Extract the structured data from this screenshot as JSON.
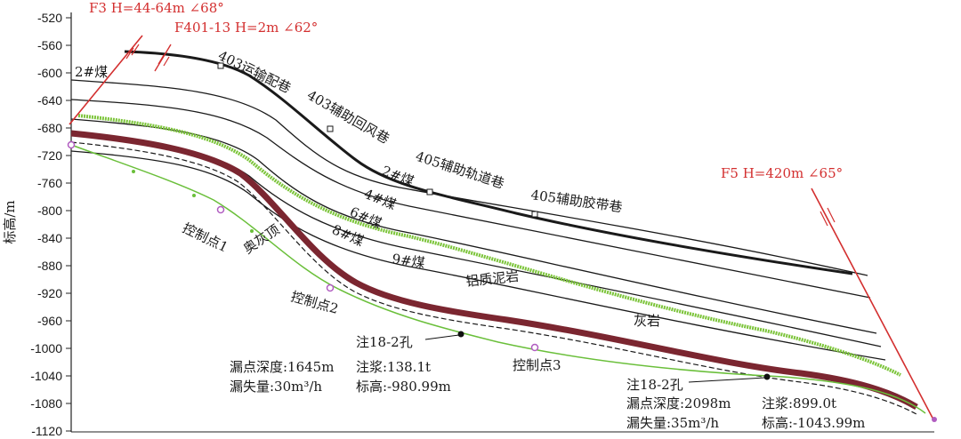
{
  "axis": {
    "ylabel": "标高/m",
    "ticks": [
      "-520",
      "-560",
      "-600",
      "-640",
      "-680",
      "-720",
      "-760",
      "-800",
      "-840",
      "-880",
      "-920",
      "-960",
      "-1000",
      "-1040",
      "-1080",
      "-1120"
    ]
  },
  "faults": {
    "f3": "F3 H=44-64m ∠68°",
    "f401": "F401-13 H=2m ∠62°",
    "f5": "F5 H=420m ∠65°"
  },
  "coal_seams": {
    "c2_left": "2#煤",
    "c2": "2#煤",
    "c4": "4#煤",
    "c6": "6#煤",
    "c8": "8#煤",
    "c9": "9#煤"
  },
  "roadways": {
    "r403_transport": "403运输配巷",
    "r403_aux_return": "403辅助回风巷",
    "r405_aux_track": "405辅助轨道巷",
    "r405_aux_belt": "405辅助胶带巷"
  },
  "strata": {
    "bauxite": "铝质泥岩",
    "limestone": "灰岩",
    "ordovician_top": "奥灰顶"
  },
  "control_points": {
    "p1": "控制点1",
    "p2": "控制点2",
    "p3": "控制点3"
  },
  "boreholes": {
    "hole1": {
      "name": "注18-2孔",
      "leak_depth": "漏点深度:1645m",
      "grout": "注浆:138.1t",
      "loss": "漏失量:30m³/h",
      "elevation": "标高:-980.99m"
    },
    "hole2": {
      "name": "注18-2孔",
      "leak_depth": "漏点深度:2098m",
      "grout": "注浆:899.0t",
      "loss": "漏失量:35m³/h",
      "elevation": "标高:-1043.99m"
    }
  },
  "colors": {
    "fault": "#d32f2f",
    "seam": "#1a1a1a",
    "limestone": "#7cc43a",
    "ordovician": "#7b2630",
    "control_line": "#6abf3a",
    "control_point": "#b05cc0"
  }
}
